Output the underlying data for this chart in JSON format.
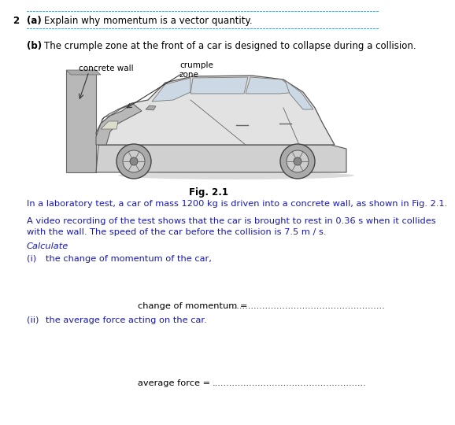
{
  "question_number": "2",
  "part_a_label": "(a)",
  "part_a_text": "Explain why momentum is a vector quantity.",
  "part_b_label": "(b)",
  "part_b_text": "The crumple zone at the front of a car is designed to collapse during a collision.",
  "fig_label": "Fig. 2.1",
  "concrete_wall_label": "concrete wall",
  "crumple_zone_label": "crumple\nzone",
  "para1": "In a laboratory test, a car of mass 1200 kg is driven into a concrete wall, as shown in Fig. 2.1.",
  "para2_line1": "A video recording of the test shows that the car is brought to rest in 0.36 s when it collides",
  "para2_line2": "with the wall. The speed of the car before the collision is 7.5 m / s.",
  "calculate_label": "Calculate",
  "part_i_label": "(i)",
  "part_i_text": "the change of momentum of the car,",
  "answer_label_i": "change of momentum =",
  "answer_dots": "......................................................",
  "part_ii_label": "(ii)",
  "part_ii_text": "the average force acting on the car.",
  "answer_label_ii": "average force =",
  "bg_color": "#ffffff",
  "text_color": "#000000",
  "blue_text_color": "#1a1aaa",
  "dotted_line_color": "#6699cc",
  "fontsize_q": 8.5,
  "fontsize_body": 8.2
}
